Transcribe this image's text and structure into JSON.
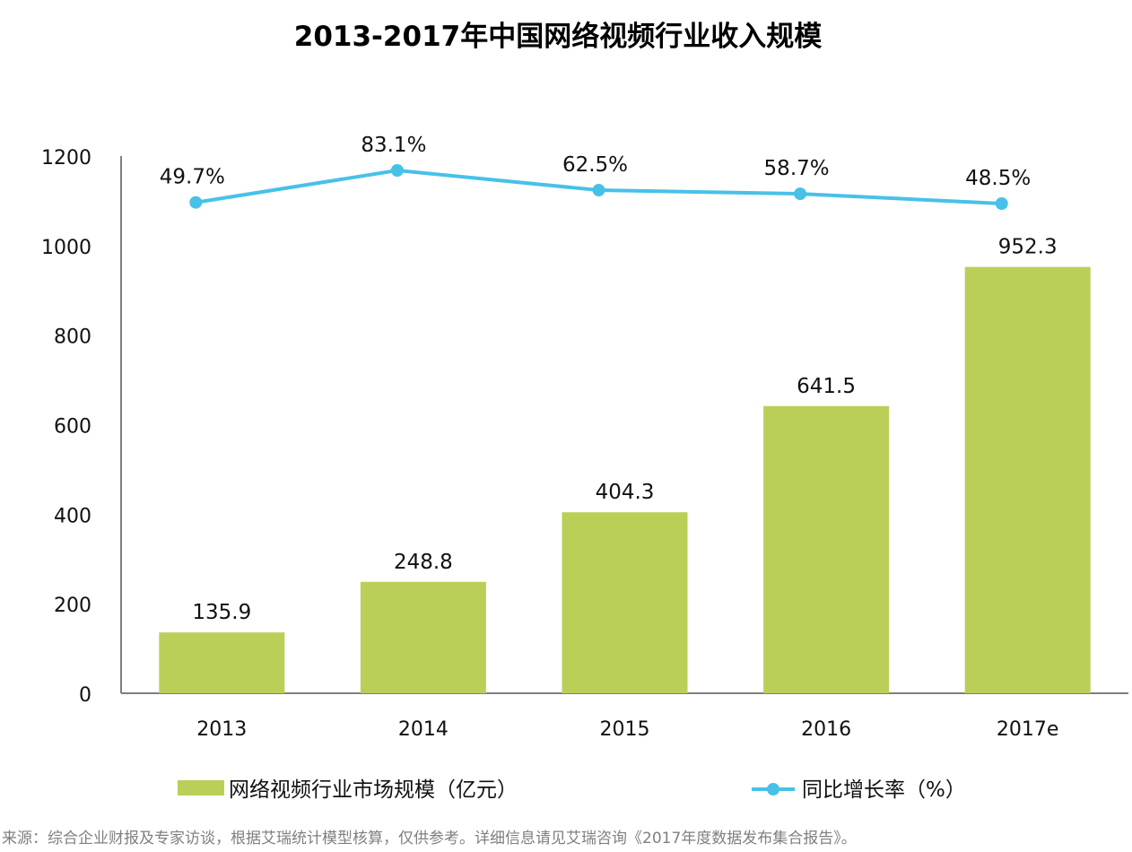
{
  "chart_data": {
    "type": "bar",
    "title": "2013-2017年中国网络视频行业收入规模",
    "categories": [
      "2013",
      "2014",
      "2015",
      "2016",
      "2017e"
    ],
    "ylim": [
      0,
      1200
    ],
    "yticks": [
      0,
      200,
      400,
      600,
      800,
      1000,
      1200
    ],
    "grid": false,
    "legend_position": "bottom",
    "series": [
      {
        "name": "网络视频行业市场规模（亿元）",
        "type": "bar",
        "color": "#b9cf58",
        "values": [
          135.9,
          248.8,
          404.3,
          641.5,
          952.3
        ],
        "labels": [
          "135.9",
          "248.8",
          "404.3",
          "641.5",
          "952.3"
        ]
      },
      {
        "name": "同比增长率（%）",
        "type": "line",
        "color": "#47c1e8",
        "values": [
          49.7,
          83.1,
          62.5,
          58.7,
          48.5
        ],
        "labels": [
          "49.7%",
          "83.1%",
          "62.5%",
          "58.7%",
          "48.5%"
        ]
      }
    ]
  },
  "source_note": "来源：综合企业财报及专家访谈，根据艾瑞统计模型核算，仅供参考。详细信息请见艾瑞咨询《2017年度数据发布集合报告》。"
}
